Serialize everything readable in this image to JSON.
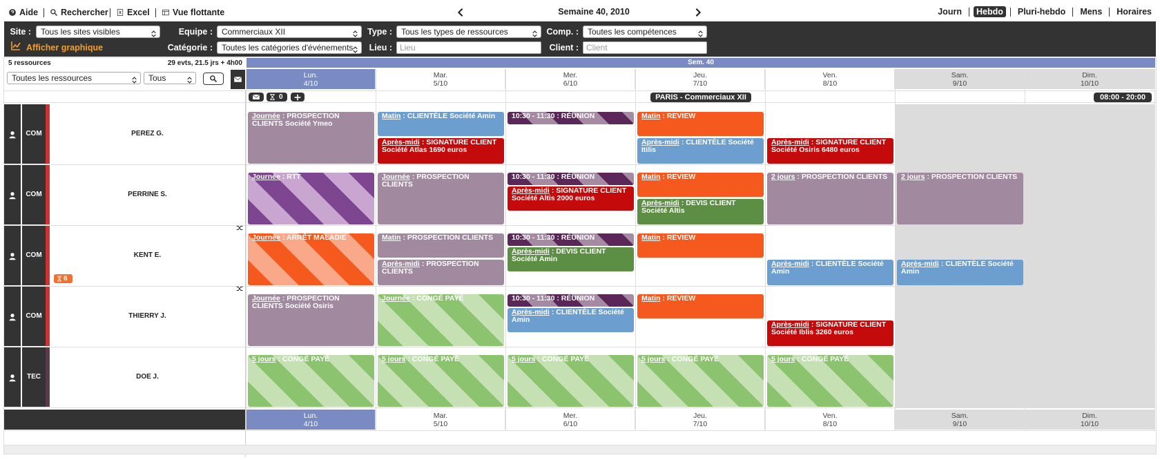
{
  "toolbar": {
    "links": [
      "Aide",
      "Rechercher",
      "Excel",
      "Vue flottante"
    ],
    "week": "Semaine 40, 2010",
    "views": [
      "Journ",
      "Hebdo",
      "Pluri-hebdo",
      "Mens",
      "Horaires"
    ],
    "active_view": 1
  },
  "filters": {
    "site": {
      "label": "Site :",
      "value": "Tous les sites visibles"
    },
    "equipe": {
      "label": "Equipe :",
      "value": "Commerciaux XII"
    },
    "type": {
      "label": "Type :",
      "value": "Tous les types de ressources"
    },
    "comp": {
      "label": "Comp. :",
      "value": "Toutes les compétences"
    },
    "categorie": {
      "label": "Catégorie :",
      "value": "Toutes les catégories d'événements"
    },
    "lieu": {
      "label": "Lieu :",
      "placeholder": "Lieu"
    },
    "client": {
      "label": "Client :",
      "placeholder": "Client"
    },
    "graph_link": "Afficher graphique"
  },
  "summary": {
    "resources": "5 ressources",
    "events": "29 evts, 21.5 jrs + 4h00",
    "resource_filter": "Toutes les ressources",
    "status_filter": "Tous"
  },
  "week_label": "Sem. 40",
  "days": [
    {
      "name": "Lun.",
      "date": "4/10"
    },
    {
      "name": "Mar.",
      "date": "5/10"
    },
    {
      "name": "Mer.",
      "date": "6/10"
    },
    {
      "name": "Jeu.",
      "date": "7/10"
    },
    {
      "name": "Ven.",
      "date": "8/10"
    },
    {
      "name": "Sam.",
      "date": "9/10"
    },
    {
      "name": "Dim.",
      "date": "10/10"
    }
  ],
  "group": {
    "counter": 0,
    "title": "PARIS - Commerciaux XII",
    "hours": "08:00 - 20:00"
  },
  "resources": [
    {
      "type": "COM",
      "name": "PEREZ G.",
      "events": [
        {
          "day": 0,
          "slot": "full",
          "label": "Journée",
          "text": ": PROSPECTION CLIENTS Société Ymeo",
          "color": "#a18a9f"
        },
        {
          "day": 1,
          "slot": "am",
          "label": "Matin",
          "text": ": CLIENTÈLE Société Amin",
          "color": "#6c9ed0"
        },
        {
          "day": 1,
          "slot": "pm",
          "label": "Après-midi",
          "text": ": SIGNATURE CLIENT Société Atlas 1690 euros",
          "color": "#c40a0a"
        },
        {
          "day": 2,
          "slot": "short",
          "text": "10:30 - 11:30 : RÉUNION",
          "color": "#5b2758",
          "stripe": "#a68aa4"
        },
        {
          "day": 3,
          "slot": "am",
          "label": "Matin",
          "text": ": REVIEW",
          "color": "#f5591e"
        },
        {
          "day": 3,
          "slot": "pm",
          "label": "Après-midi",
          "text": ": CLIENTÈLE Société Itilis",
          "color": "#6c9ed0"
        },
        {
          "day": 4,
          "slot": "pm",
          "label": "Après-midi",
          "text": ": SIGNATURE CLIENT Société Osiris 6480 euros",
          "color": "#c40a0a"
        }
      ]
    },
    {
      "type": "COM",
      "name": "PERRINE S.",
      "events": [
        {
          "day": 0,
          "slot": "full",
          "label": "Journée",
          "text": ": RTT",
          "color": "#7e4591",
          "stripe": "#c8a6cf"
        },
        {
          "day": 1,
          "slot": "full",
          "label": "Journée",
          "text": ": PROSPECTION CLIENTS",
          "color": "#a18a9f"
        },
        {
          "day": 2,
          "slot": "short",
          "text": "10:30 - 11:30 : RÉUNION",
          "color": "#5b2758",
          "stripe": "#a68aa4"
        },
        {
          "day": 2,
          "slot": "mid",
          "label": "Après-midi",
          "text": ": SIGNATURE CLIENT Société Altis 2000 euros",
          "color": "#c40a0a"
        },
        {
          "day": 3,
          "slot": "am",
          "label": "Matin",
          "text": ": REVIEW",
          "color": "#f5591e"
        },
        {
          "day": 3,
          "slot": "pm",
          "label": "Après-midi",
          "text": ": DEVIS CLIENT Société Altis",
          "color": "#5c8f44"
        },
        {
          "day": 4,
          "slot": "full",
          "label": "2 jours",
          "text": ": PROSPECTION CLIENTS",
          "color": "#a18a9f"
        },
        {
          "day": 5,
          "slot": "full",
          "label": "2 jours",
          "text": ": PROSPECTION CLIENTS",
          "color": "#a18a9f"
        }
      ]
    },
    {
      "type": "COM",
      "name": "KENT E.",
      "badge": 6,
      "events": [
        {
          "day": 0,
          "slot": "full",
          "label": "Journée",
          "text": ": ARRÊT MALADIE",
          "color": "#f5591e",
          "stripe": "#f9a98a"
        },
        {
          "day": 1,
          "slot": "am",
          "label": "Matin",
          "text": ": PROSPECTION CLIENTS",
          "color": "#a18a9f"
        },
        {
          "day": 1,
          "slot": "pm",
          "label": "Après-midi",
          "text": ": PROSPECTION CLIENTS",
          "color": "#a18a9f"
        },
        {
          "day": 2,
          "slot": "short",
          "text": "10:30 - 11:30 : RÉUNION",
          "color": "#5b2758",
          "stripe": "#a68aa4"
        },
        {
          "day": 2,
          "slot": "mid",
          "label": "Après-midi",
          "text": ": DEVIS CLIENT Société Amin",
          "color": "#5c8f44"
        },
        {
          "day": 3,
          "slot": "am",
          "label": "Matin",
          "text": ": REVIEW",
          "color": "#f5591e"
        },
        {
          "day": 4,
          "slot": "pm",
          "label": "Après-midi",
          "text": ": CLIENTÈLE Société Amin",
          "color": "#6c9ed0"
        },
        {
          "day": 5,
          "slot": "pm",
          "label": "Après-midi",
          "text": ": CLIENTÈLE Société Amin",
          "color": "#6c9ed0"
        }
      ]
    },
    {
      "type": "COM",
      "name": "THIERRY J.",
      "events": [
        {
          "day": 0,
          "slot": "full",
          "label": "Journée",
          "text": ": PROSPECTION CLIENTS Société Osiris",
          "color": "#a18a9f"
        },
        {
          "day": 1,
          "slot": "full",
          "label": "Journée",
          "text": ": CONGÉ PAYÉ",
          "color": "#8bc36e",
          "stripe": "#c5e1b4"
        },
        {
          "day": 2,
          "slot": "short",
          "text": "10:30 - 11:30 : RÉUNION",
          "color": "#5b2758",
          "stripe": "#a68aa4"
        },
        {
          "day": 2,
          "slot": "mid",
          "label": "Après-midi",
          "text": ": CLIENTÈLE Société Amin",
          "color": "#6c9ed0"
        },
        {
          "day": 3,
          "slot": "am",
          "label": "Matin",
          "text": ": REVIEW",
          "color": "#f5591e"
        },
        {
          "day": 4,
          "slot": "pm",
          "label": "Après-midi",
          "text": ": SIGNATURE CLIENT Société Iblis 3260 euros",
          "color": "#c40a0a"
        }
      ]
    },
    {
      "type": "TEC",
      "name": "DOE J.",
      "events": [
        {
          "day": 0,
          "slot": "full",
          "label": "5 jours",
          "text": ": CONGÉ PAYÉ",
          "color": "#8bc36e",
          "stripe": "#c5e1b4"
        },
        {
          "day": 1,
          "slot": "full",
          "label": "5 jours",
          "text": ": CONGÉ PAYÉ",
          "color": "#8bc36e",
          "stripe": "#c5e1b4"
        },
        {
          "day": 2,
          "slot": "full",
          "label": "5 jours",
          "text": ": CONGÉ PAYÉ",
          "color": "#8bc36e",
          "stripe": "#c5e1b4"
        },
        {
          "day": 3,
          "slot": "full",
          "label": "5 jours",
          "text": ": CONGÉ PAYÉ",
          "color": "#8bc36e",
          "stripe": "#c5e1b4"
        },
        {
          "day": 4,
          "slot": "full",
          "label": "5 jours",
          "text": ": CONGÉ PAYÉ",
          "color": "#8bc36e",
          "stripe": "#c5e1b4"
        }
      ]
    }
  ]
}
